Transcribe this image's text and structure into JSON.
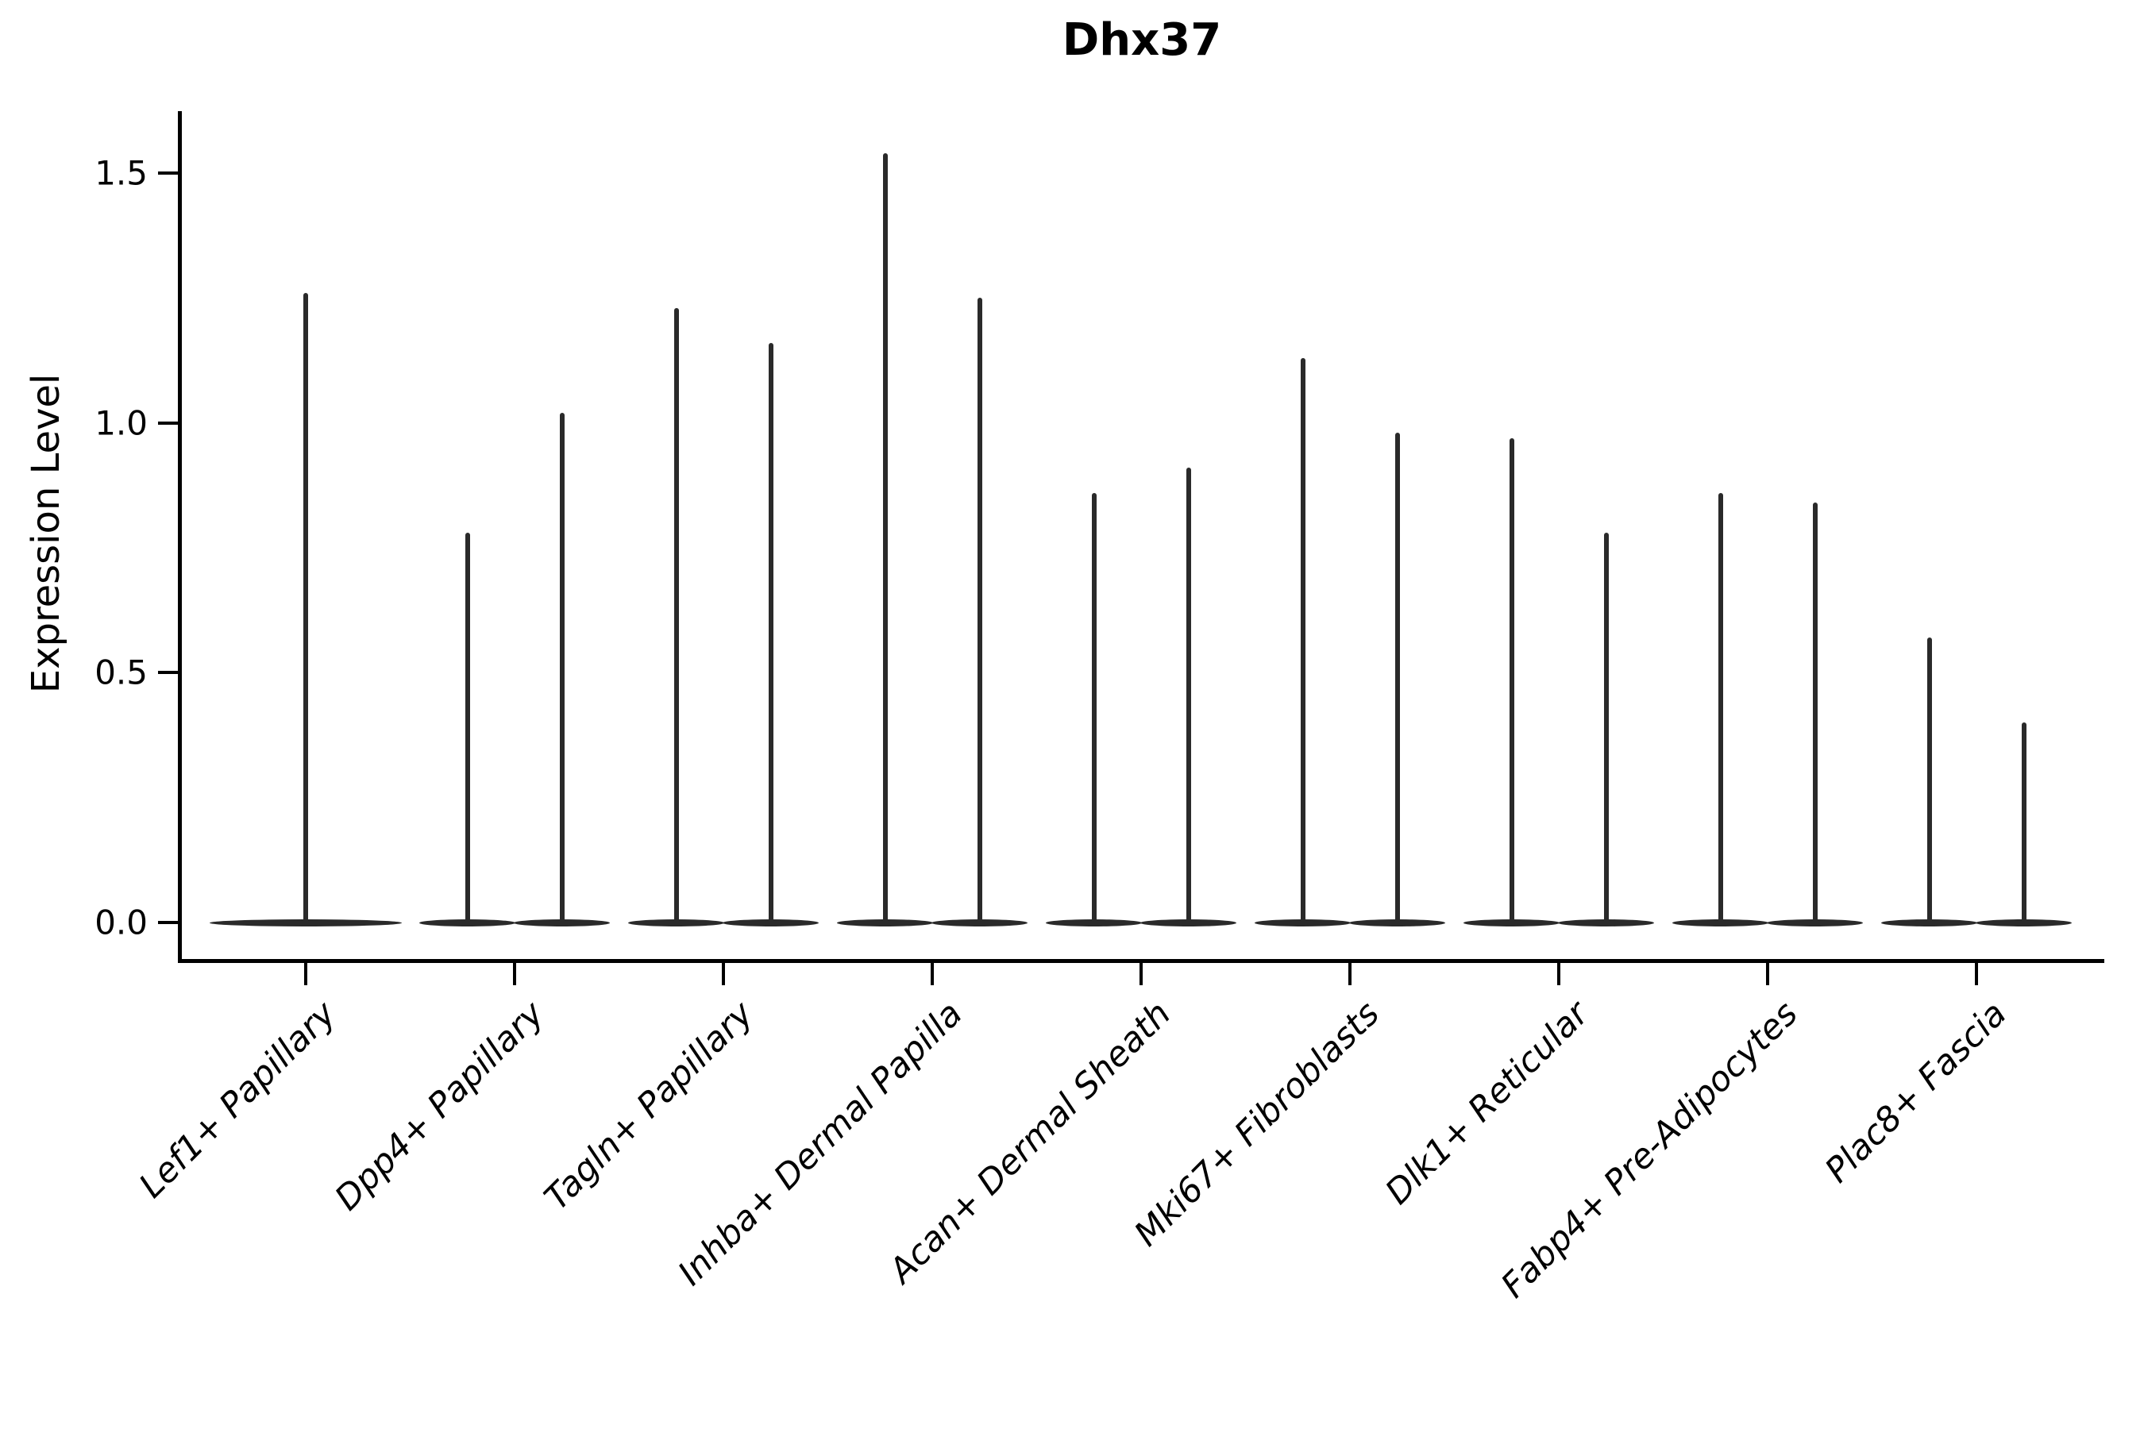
{
  "title": "Dhx37",
  "y_axis": {
    "label": "Expression Level",
    "tick_labels": [
      "0.0",
      "0.5",
      "1.0",
      "1.5"
    ]
  },
  "chart_data": {
    "type": "violin",
    "title": "Dhx37",
    "ylabel": "Expression Level",
    "ylim": [
      -0.06,
      1.63
    ],
    "yticks": [
      0.0,
      0.5,
      1.0,
      1.5
    ],
    "grid": false,
    "legend": false,
    "baseline_value": 0.0,
    "categories": [
      "Lef1+ Papillary",
      "Dpp4+ Papillary",
      "Tagln+ Papillary",
      "Inhba+ Dermal Papilla",
      "Acan+ Dermal Sheath",
      "Mki67+ Fibroblasts",
      "Dlk1+ Reticular",
      "Fabp4+ Pre-Adipocytes",
      "Plac8+ Fascia"
    ],
    "violins": [
      {
        "category": "Lef1+ Papillary",
        "spike_maxima": [
          1.26
        ]
      },
      {
        "category": "Dpp4+ Papillary",
        "spike_maxima": [
          0.78,
          1.02
        ]
      },
      {
        "category": "Tagln+ Papillary",
        "spike_maxima": [
          1.23,
          1.16
        ]
      },
      {
        "category": "Inhba+ Dermal Papilla",
        "spike_maxima": [
          1.54,
          1.25
        ]
      },
      {
        "category": "Acan+ Dermal Sheath",
        "spike_maxima": [
          0.86,
          0.91
        ]
      },
      {
        "category": "Mki67+ Fibroblasts",
        "spike_maxima": [
          1.13,
          0.98
        ]
      },
      {
        "category": "Dlk1+ Reticular",
        "spike_maxima": [
          0.97,
          0.78
        ]
      },
      {
        "category": "Fabp4+ Pre-Adipocytes",
        "spike_maxima": [
          0.86,
          0.84
        ]
      },
      {
        "category": "Plac8+ Fascia",
        "spike_maxima": [
          0.57,
          0.4
        ]
      }
    ],
    "description": "Violin plot; each violin is a flat dense mass at 0 expression with a thin vertical tail up to the max expression value."
  },
  "colors": {
    "violin": "#2a2a2a",
    "axis": "#000000",
    "text": "#000000",
    "background": "#ffffff"
  }
}
